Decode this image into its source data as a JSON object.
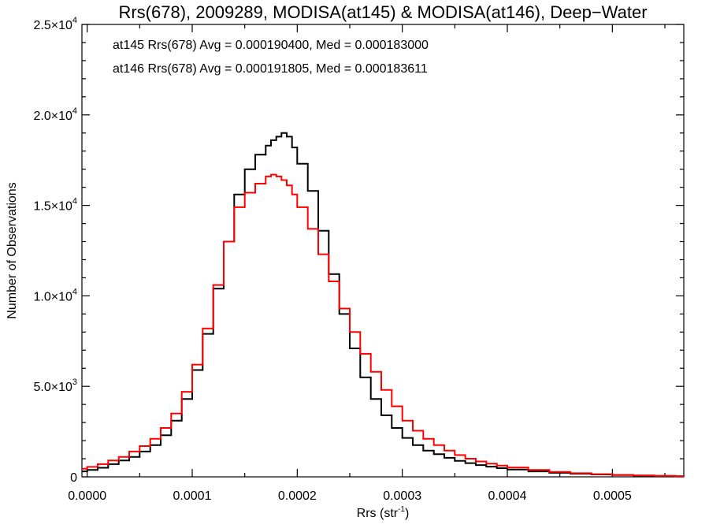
{
  "chart_data": {
    "type": "line",
    "title": "Rrs(678), 2009289, MODISA(at145) & MODISA(at146), Deep−Water",
    "xlabel": "Rrs (str",
    "xlabel_sup": "-1",
    "xlabel_end": ")",
    "ylabel": "Number of Observations",
    "xlim": [
      -5e-06,
      0.000568
    ],
    "ylim": [
      0,
      25000
    ],
    "x_ticks": [
      0.0,
      0.0001,
      0.0002,
      0.0003,
      0.0004,
      0.0005
    ],
    "x_tick_labels": [
      "0.0000",
      "0.0001",
      "0.0002",
      "0.0003",
      "0.0004",
      "0.0005"
    ],
    "y_ticks": [
      0,
      5000,
      10000,
      15000,
      20000,
      25000
    ],
    "y_tick_labels": [
      {
        "mant": "0",
        "exp": ""
      },
      {
        "mant": "5.0×10",
        "exp": "3"
      },
      {
        "mant": "1.0×10",
        "exp": "4"
      },
      {
        "mant": "1.5×10",
        "exp": "4"
      },
      {
        "mant": "2.0×10",
        "exp": "4"
      },
      {
        "mant": "2.5×10",
        "exp": "4"
      }
    ],
    "grid": false,
    "legend_position": "top-left",
    "series": [
      {
        "name": "at145",
        "label": "at145 Rrs(678) Avg = 0.000190400, Med = 0.000183000",
        "color": "#000000",
        "x": [
          -5e-06,
          0.0,
          1e-05,
          2e-05,
          3e-05,
          4e-05,
          5e-05,
          6e-05,
          7e-05,
          8e-05,
          9e-05,
          0.0001,
          0.00011,
          0.00012,
          0.00013,
          0.00014,
          0.00015,
          0.00016,
          0.00017,
          0.000175,
          0.00018,
          0.000185,
          0.00019,
          0.000195,
          0.0002,
          0.00021,
          0.00022,
          0.00023,
          0.00024,
          0.00025,
          0.00026,
          0.00027,
          0.00028,
          0.00029,
          0.0003,
          0.00031,
          0.00032,
          0.00033,
          0.00034,
          0.00035,
          0.00036,
          0.00037,
          0.00038,
          0.00039,
          0.0004,
          0.00042,
          0.00044,
          0.00046,
          0.00048,
          0.0005,
          0.00052,
          0.00054,
          0.00056,
          0.000568
        ],
        "y": [
          300,
          380,
          500,
          700,
          900,
          1100,
          1400,
          1750,
          2300,
          3100,
          4300,
          5900,
          7900,
          10400,
          13000,
          15600,
          17000,
          17800,
          18300,
          18600,
          18800,
          19000,
          18800,
          18200,
          17300,
          15800,
          13600,
          11200,
          9000,
          7100,
          5500,
          4300,
          3400,
          2700,
          2150,
          1750,
          1450,
          1250,
          1050,
          880,
          760,
          650,
          560,
          480,
          400,
          300,
          220,
          170,
          130,
          100,
          70,
          50,
          30,
          20
        ]
      },
      {
        "name": "at146",
        "label": "at146 Rrs(678) Avg = 0.000191805, Med = 0.000183611",
        "color": "#ff0000",
        "x": [
          -5e-06,
          0.0,
          1e-05,
          2e-05,
          3e-05,
          4e-05,
          5e-05,
          6e-05,
          7e-05,
          8e-05,
          9e-05,
          0.0001,
          0.00011,
          0.00012,
          0.00013,
          0.00014,
          0.00015,
          0.00016,
          0.00017,
          0.000175,
          0.00018,
          0.000185,
          0.00019,
          0.000195,
          0.0002,
          0.00021,
          0.00022,
          0.00023,
          0.00024,
          0.00025,
          0.00026,
          0.00027,
          0.00028,
          0.00029,
          0.0003,
          0.00031,
          0.00032,
          0.00033,
          0.00034,
          0.00035,
          0.00036,
          0.00037,
          0.00038,
          0.00039,
          0.0004,
          0.00042,
          0.00044,
          0.00046,
          0.00048,
          0.0005,
          0.00052,
          0.00054,
          0.00056,
          0.000568
        ],
        "y": [
          450,
          550,
          700,
          900,
          1100,
          1400,
          1700,
          2100,
          2700,
          3500,
          4700,
          6200,
          8200,
          10600,
          13000,
          14900,
          15700,
          16200,
          16600,
          16700,
          16600,
          16400,
          16100,
          15600,
          14900,
          13700,
          12300,
          10800,
          9300,
          8000,
          6800,
          5800,
          4800,
          3900,
          3100,
          2550,
          2100,
          1750,
          1450,
          1200,
          1000,
          850,
          730,
          620,
          520,
          380,
          270,
          200,
          150,
          110,
          80,
          55,
          35,
          25
        ]
      }
    ]
  }
}
